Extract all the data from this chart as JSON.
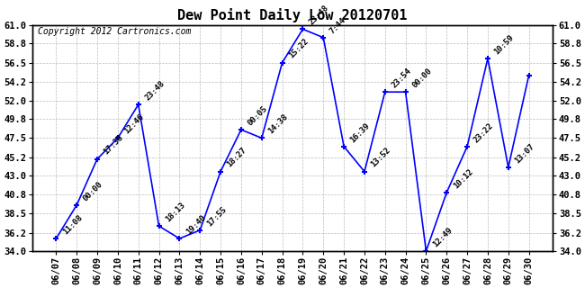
{
  "title": "Dew Point Daily Low 20120701",
  "copyright": "Copyright 2012 Cartronics.com",
  "x_labels": [
    "06/07",
    "06/08",
    "06/09",
    "06/10",
    "06/11",
    "06/12",
    "06/13",
    "06/14",
    "06/15",
    "06/16",
    "06/17",
    "06/18",
    "06/19",
    "06/20",
    "06/21",
    "06/22",
    "06/23",
    "06/24",
    "06/25",
    "06/26",
    "06/27",
    "06/28",
    "06/29",
    "06/30"
  ],
  "y_values": [
    35.5,
    39.5,
    45.0,
    47.5,
    51.5,
    37.0,
    35.5,
    36.5,
    43.5,
    48.5,
    47.5,
    56.5,
    60.5,
    59.5,
    46.5,
    43.5,
    53.0,
    53.0,
    34.0,
    41.0,
    46.5,
    57.0,
    44.0,
    55.0
  ],
  "point_labels": [
    "11:08",
    "00:00",
    "17:38",
    "12:46",
    "23:48",
    "18:13",
    "19:40",
    "17:55",
    "18:27",
    "00:05",
    "14:38",
    "15:22",
    "23:48",
    "7:44",
    "16:39",
    "13:52",
    "23:54",
    "00:00",
    "12:49",
    "10:12",
    "23:22",
    "10:59",
    "13:07",
    ""
  ],
  "ylim": [
    34.0,
    61.0
  ],
  "yticks": [
    34.0,
    36.2,
    38.5,
    40.8,
    43.0,
    45.2,
    47.5,
    49.8,
    52.0,
    54.2,
    56.5,
    58.8,
    61.0
  ],
  "line_color": "blue",
  "marker_color": "blue",
  "bg_color": "white",
  "grid_color": "#bbbbbb",
  "title_fontsize": 11,
  "label_fontsize": 6.5,
  "tick_fontsize": 7.5,
  "copyright_fontsize": 7
}
